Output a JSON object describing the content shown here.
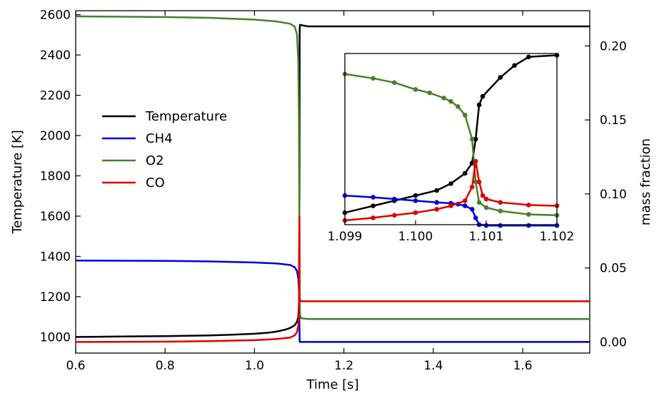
{
  "chart_data": [
    {
      "type": "line",
      "name": "main",
      "xlabel": "Time [s]",
      "ylabel": "Temperature [K]",
      "ylabel_right": "mass fraction",
      "xlim": [
        0.6,
        1.75
      ],
      "ylim": [
        920,
        2620
      ],
      "ylim_right": [
        -0.0075,
        0.2238
      ],
      "xticks": [
        0.6,
        0.8,
        1.0,
        1.2,
        1.4,
        1.6
      ],
      "xtick_labels": [
        "0.6",
        "0.8",
        "1.0",
        "1.2",
        "1.4",
        "1.6"
      ],
      "yticks": [
        1000,
        1200,
        1400,
        1600,
        1800,
        2000,
        2200,
        2400,
        2600
      ],
      "ytick_labels": [
        "1000",
        "1200",
        "1400",
        "1600",
        "1800",
        "2000",
        "2200",
        "2400",
        "2600"
      ],
      "yticks_right": [
        0.0,
        0.05,
        0.1,
        0.15,
        0.2
      ],
      "ytick_labels_right": [
        "0.00",
        "0.05",
        "0.10",
        "0.15",
        "0.20"
      ],
      "legend": {
        "placement": "center-left",
        "entries": [
          {
            "label": "Temperature",
            "color": "#000000"
          },
          {
            "label": "CH4",
            "color": "#0000dd"
          },
          {
            "label": "O2",
            "color": "#4a7f2a"
          },
          {
            "label": "CO",
            "color": "#dd0000"
          }
        ]
      },
      "series": [
        {
          "name": "Temperature",
          "axis": "left",
          "color": "#000000",
          "x": [
            0.6,
            0.7,
            0.8,
            0.9,
            0.95,
            1.0,
            1.03,
            1.05,
            1.07,
            1.08,
            1.09,
            1.095,
            1.098,
            1.0995,
            1.1005,
            1.101,
            1.102,
            1.105,
            1.12,
            1.2,
            1.4,
            1.6,
            1.75
          ],
          "y": [
            1000,
            1002,
            1004,
            1008,
            1011,
            1016,
            1021,
            1027,
            1037,
            1045,
            1058,
            1075,
            1100,
            1160,
            1700,
            2530,
            2550,
            2548,
            2542,
            2542,
            2542,
            2542,
            2542
          ]
        },
        {
          "name": "CH4",
          "axis": "right",
          "color": "#0000dd",
          "x": [
            0.6,
            0.8,
            0.9,
            1.0,
            1.05,
            1.08,
            1.09,
            1.095,
            1.098,
            1.0995,
            1.1005,
            1.101,
            1.102,
            1.2,
            1.4,
            1.75
          ],
          "y": [
            0.055,
            0.0548,
            0.0544,
            0.0537,
            0.053,
            0.052,
            0.0505,
            0.048,
            0.043,
            0.035,
            0.012,
            0.0,
            0.0,
            0.0,
            0.0,
            0.0
          ]
        },
        {
          "name": "O2",
          "axis": "right",
          "color": "#4a7f2a",
          "x": [
            0.6,
            0.8,
            0.9,
            1.0,
            1.05,
            1.08,
            1.09,
            1.095,
            1.098,
            1.0995,
            1.1005,
            1.101,
            1.102,
            1.105,
            1.12,
            1.2,
            1.4,
            1.75
          ],
          "y": [
            0.22,
            0.2195,
            0.219,
            0.2178,
            0.2165,
            0.215,
            0.213,
            0.208,
            0.19,
            0.15,
            0.07,
            0.03,
            0.018,
            0.016,
            0.0155,
            0.0155,
            0.0155,
            0.0155
          ]
        },
        {
          "name": "CO",
          "axis": "right",
          "color": "#dd0000",
          "x": [
            0.6,
            0.8,
            0.9,
            1.0,
            1.05,
            1.08,
            1.09,
            1.095,
            1.098,
            1.0995,
            1.1,
            1.1005,
            1.101,
            1.102,
            1.105,
            1.12,
            1.2,
            1.4,
            1.75
          ],
          "y": [
            0.0,
            0.0002,
            0.0006,
            0.0012,
            0.002,
            0.003,
            0.0045,
            0.0065,
            0.011,
            0.02,
            0.055,
            0.085,
            0.03,
            0.028,
            0.0275,
            0.0275,
            0.0275,
            0.0275,
            0.0275
          ]
        }
      ]
    },
    {
      "type": "line",
      "name": "inset",
      "xlim": [
        1.099,
        1.102
      ],
      "ylim": [
        0,
        1
      ],
      "xticks": [
        1.099,
        1.1,
        1.101,
        1.102
      ],
      "xtick_labels": [
        "1.099",
        "1.100",
        "1.101",
        "1.102"
      ],
      "series": [
        {
          "name": "Temperature",
          "color": "#000000",
          "x": [
            1.099,
            1.0994,
            1.0997,
            1.1,
            1.1003,
            1.1005,
            1.1007,
            1.1008,
            1.10085,
            1.1009,
            1.10095,
            1.1012,
            1.1014,
            1.1016,
            1.102
          ],
          "y": [
            0.07,
            0.11,
            0.14,
            0.17,
            0.2,
            0.24,
            0.3,
            0.36,
            0.5,
            0.7,
            0.75,
            0.86,
            0.93,
            0.98,
            0.99
          ]
        },
        {
          "name": "CH4",
          "color": "#0000dd",
          "x": [
            1.099,
            1.0994,
            1.0997,
            1.1,
            1.1003,
            1.1005,
            1.1006,
            1.1007,
            1.1008,
            1.10085,
            1.1009,
            1.101,
            1.1012,
            1.1016,
            1.102
          ],
          "y": [
            0.17,
            0.16,
            0.15,
            0.14,
            0.13,
            0.125,
            0.12,
            0.11,
            0.09,
            0.04,
            0.0,
            -0.005,
            -0.005,
            -0.005,
            -0.005
          ]
        },
        {
          "name": "O2",
          "color": "#4a7f2a",
          "x": [
            1.099,
            1.0994,
            1.0997,
            1.1,
            1.1002,
            1.1004,
            1.1005,
            1.1006,
            1.1007,
            1.1008,
            1.10085,
            1.1009,
            1.101,
            1.1012,
            1.1016,
            1.102
          ],
          "y": [
            0.88,
            0.855,
            0.83,
            0.79,
            0.77,
            0.74,
            0.72,
            0.69,
            0.64,
            0.5,
            0.25,
            0.13,
            0.1,
            0.08,
            0.06,
            0.055
          ]
        },
        {
          "name": "CO",
          "color": "#dd0000",
          "x": [
            1.099,
            1.0994,
            1.0997,
            1.1,
            1.1003,
            1.1005,
            1.1007,
            1.1008,
            1.10085,
            1.1009,
            1.10095,
            1.101,
            1.1012,
            1.1016,
            1.102
          ],
          "y": [
            0.025,
            0.04,
            0.055,
            0.07,
            0.09,
            0.11,
            0.14,
            0.22,
            0.37,
            0.25,
            0.17,
            0.15,
            0.13,
            0.115,
            0.11
          ]
        }
      ]
    }
  ]
}
